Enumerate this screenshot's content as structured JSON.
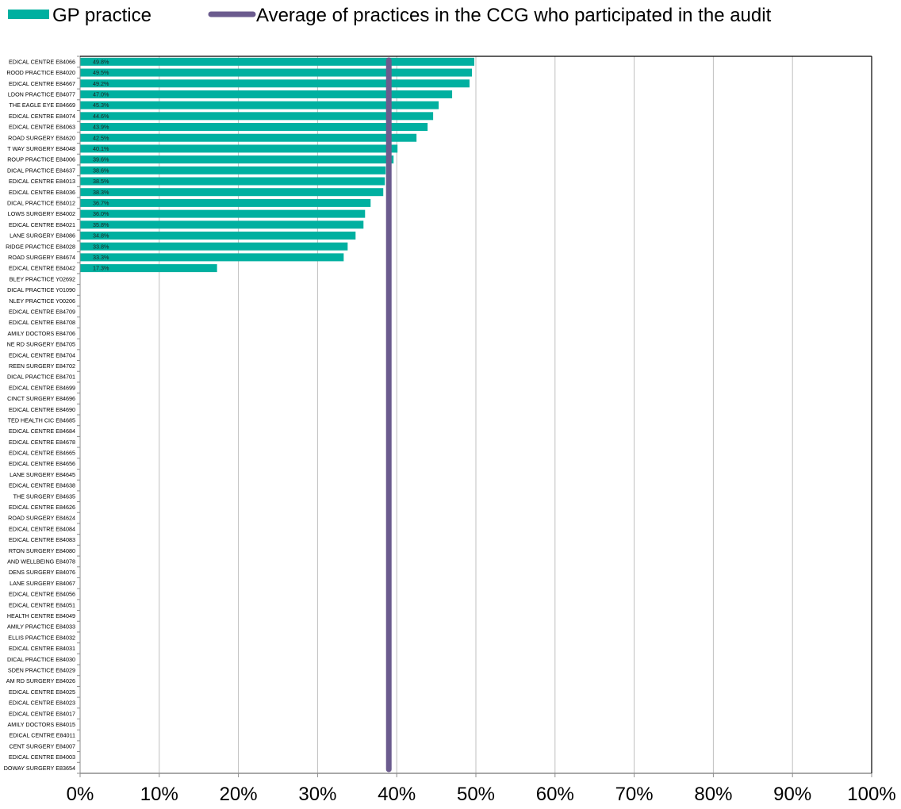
{
  "colors": {
    "bar": "#00b0a0",
    "average": "#6b5b8e",
    "grid": "#bfbfbf",
    "axis": "#8c8c8c",
    "frame": "#000000"
  },
  "chart_data": {
    "type": "bar",
    "orientation": "horizontal",
    "categories": [
      "EDICAL CENTRE E84066",
      "ROOD PRACTICE E84020",
      "EDICAL CENTRE E84667",
      "LDON PRACTICE E84077",
      "THE EAGLE EYE E84669",
      "EDICAL CENTRE E84074",
      "EDICAL CENTRE E84063",
      "ROAD SURGERY E84620",
      "T WAY SURGERY E84048",
      "ROUP PRACTICE E84006",
      "DICAL PRACTICE E84637",
      "EDICAL CENTRE E84013",
      "EDICAL CENTRE E84036",
      "DICAL PRACTICE E84012",
      "LOWS SURGERY E84002",
      "EDICAL CENTRE E84021",
      "LANE SURGERY E84086",
      "RIDGE PRACTICE E84028",
      "ROAD SURGERY E84674",
      "EDICAL CENTRE E84042",
      "BLEY PRACTICE Y02692",
      "DICAL PRACTICE Y01090",
      "NLEY PRACTICE Y00206",
      "EDICAL CENTRE E84709",
      "EDICAL CENTRE E84708",
      "AMILY DOCTORS E84706",
      "NE RD SURGERY E84705",
      "EDICAL CENTRE E84704",
      "REEN SURGERY E84702",
      "DICAL PRACTICE E84701",
      "EDICAL CENTRE E84699",
      "CINCT SURGERY E84696",
      "EDICAL CENTRE E84690",
      "TED HEALTH CIC E84685",
      "EDICAL CENTRE E84684",
      "EDICAL CENTRE E84678",
      "EDICAL CENTRE E84665",
      "EDICAL CENTRE E84656",
      "LANE SURGERY E84645",
      "EDICAL CENTRE E84638",
      "THE SURGERY E84635",
      "EDICAL CENTRE E84626",
      "ROAD SURGERY E84624",
      "EDICAL CENTRE E84084",
      "EDICAL CENTRE E84083",
      "RTON SURGERY E84080",
      "AND WELLBEING E84078",
      "DENS SURGERY E84076",
      "LANE SURGERY E84067",
      "EDICAL CENTRE E84056",
      "EDICAL CENTRE E84051",
      "HEALTH CENTRE E84049",
      "AMILY PRACTICE E84033",
      "ELLIS PRACTICE E84032",
      "EDICAL CENTRE E84031",
      "DICAL PRACTICE E84030",
      "SDEN PRACTICE E84029",
      "AM RD SURGERY E84026",
      "EDICAL CENTRE E84025",
      "EDICAL CENTRE E84023",
      "EDICAL CENTRE E84017",
      "AMILY DOCTORS E84015",
      "EDICAL CENTRE E84011",
      "CENT SURGERY E84007",
      "EDICAL CENTRE E84003",
      "DOWAY SURGERY E83654"
    ],
    "series": [
      {
        "name": "GP practice",
        "values": [
          49.8,
          49.5,
          49.2,
          47.0,
          45.3,
          44.6,
          43.9,
          42.5,
          40.1,
          39.6,
          38.6,
          38.5,
          38.3,
          36.7,
          36.0,
          35.8,
          34.8,
          33.8,
          33.3,
          17.3,
          null,
          null,
          null,
          null,
          null,
          null,
          null,
          null,
          null,
          null,
          null,
          null,
          null,
          null,
          null,
          null,
          null,
          null,
          null,
          null,
          null,
          null,
          null,
          null,
          null,
          null,
          null,
          null,
          null,
          null,
          null,
          null,
          null,
          null,
          null,
          null,
          null,
          null,
          null,
          null,
          null,
          null,
          null,
          null,
          null,
          null
        ]
      }
    ],
    "data_labels": [
      "49.8%",
      "49.5%",
      "49.2%",
      "47.0%",
      "45.3%",
      "44.6%",
      "43.9%",
      "42.5%",
      "40.1%",
      "39.6%",
      "38.6%",
      "38.5%",
      "38.3%",
      "36.7%",
      "36.0%",
      "35.8%",
      "34.8%",
      "33.8%",
      "33.3%",
      "17.3%"
    ],
    "average": {
      "name": "Average of practices in the CCG who participated in the audit",
      "value": 39.0
    },
    "xlim": [
      0,
      100
    ],
    "xticks": [
      "0%",
      "10%",
      "20%",
      "30%",
      "40%",
      "50%",
      "60%",
      "70%",
      "80%",
      "90%",
      "100%"
    ],
    "grid": true,
    "legend_position": "top"
  }
}
